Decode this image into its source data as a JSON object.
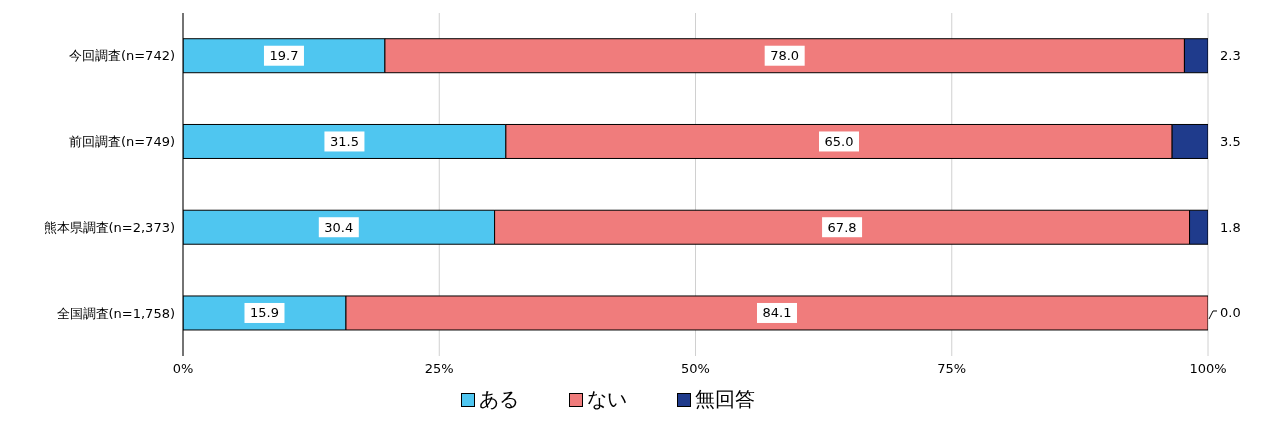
{
  "chart_data": {
    "type": "bar",
    "orientation": "horizontal",
    "stacked": true,
    "categories": [
      "今回調査(n=742)",
      "前回調査(n=749)",
      "熊本県調査(n=2,373)",
      "全国調査(n=1,758)"
    ],
    "series": [
      {
        "name": "ある",
        "color": "#4fc6f0",
        "values": [
          19.7,
          31.5,
          30.4,
          15.9
        ],
        "value_labels": [
          "19.7",
          "31.5",
          "30.4",
          "15.9"
        ]
      },
      {
        "name": "ない",
        "color": "#f07c7c",
        "values": [
          78.0,
          65.0,
          67.8,
          84.1
        ],
        "value_labels": [
          "78.0",
          "65.0",
          "67.8",
          "84.1"
        ]
      },
      {
        "name": "無回答",
        "color": "#1f3b8c",
        "values": [
          2.3,
          3.5,
          1.8,
          0.0
        ],
        "value_labels": [
          "2.3",
          "3.5",
          "1.8",
          "0.0"
        ]
      }
    ],
    "xlim": [
      0,
      100
    ],
    "xticks": [
      {
        "value": 0,
        "label": "0%"
      },
      {
        "value": 25,
        "label": "25%"
      },
      {
        "value": 50,
        "label": "50%"
      },
      {
        "value": 75,
        "label": "75%"
      },
      {
        "value": 100,
        "label": "100%"
      }
    ],
    "grid": "x",
    "legend": "bottom"
  }
}
